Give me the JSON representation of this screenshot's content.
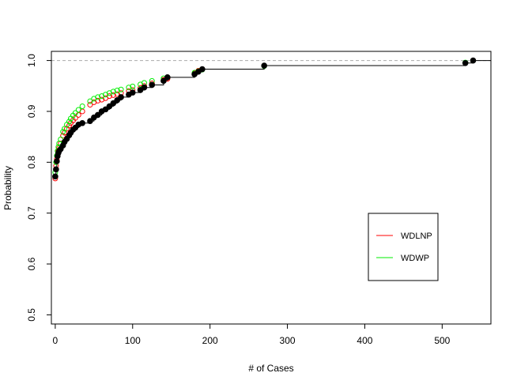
{
  "chart_data": {
    "type": "scatter",
    "title": "",
    "xlabel": "# of Cases",
    "ylabel": "Probability",
    "xlim": [
      -5,
      563
    ],
    "ylim": [
      0.482,
      1.018
    ],
    "xticks": [
      0,
      100,
      200,
      300,
      400,
      500
    ],
    "yticks": [
      0.5,
      0.6,
      0.7,
      0.8,
      0.9,
      1.0
    ],
    "ytick_labels": [
      "0.5",
      "0.6",
      "0.7",
      "0.8",
      "0.9",
      "1.0"
    ],
    "reference_line": {
      "y": 1.0,
      "style": "dashed",
      "color": "#aaaaaa"
    },
    "legend": {
      "position": "lower-right"
    },
    "series": [
      {
        "name": "",
        "kind": "step+filled-points",
        "color": "#000000",
        "x": [
          0,
          1,
          2,
          3,
          4,
          5,
          7,
          10,
          12,
          15,
          18,
          20,
          23,
          26,
          30,
          35,
          45,
          50,
          55,
          60,
          65,
          70,
          75,
          80,
          85,
          95,
          100,
          110,
          115,
          125,
          140,
          145,
          180,
          185,
          190,
          270,
          530,
          540
        ],
        "y": [
          0.772,
          0.786,
          0.802,
          0.812,
          0.818,
          0.822,
          0.826,
          0.833,
          0.84,
          0.846,
          0.853,
          0.858,
          0.864,
          0.868,
          0.874,
          0.877,
          0.881,
          0.888,
          0.893,
          0.9,
          0.904,
          0.91,
          0.916,
          0.922,
          0.928,
          0.933,
          0.937,
          0.942,
          0.947,
          0.952,
          0.96,
          0.967,
          0.973,
          0.978,
          0.983,
          0.99,
          0.995,
          1.0
        ]
      },
      {
        "name": "WDLNP",
        "kind": "open-points",
        "color": "#ff0000",
        "x": [
          0,
          1,
          2,
          3,
          4,
          5,
          7,
          10,
          12,
          15,
          18,
          20,
          23,
          26,
          30,
          35,
          45,
          50,
          55,
          60,
          65,
          70,
          75,
          80,
          85,
          95,
          100,
          110,
          115,
          125,
          140,
          145,
          180,
          185,
          190,
          270,
          530,
          540
        ],
        "y": [
          0.768,
          0.793,
          0.806,
          0.815,
          0.823,
          0.828,
          0.837,
          0.852,
          0.858,
          0.866,
          0.872,
          0.877,
          0.882,
          0.887,
          0.893,
          0.9,
          0.913,
          0.918,
          0.921,
          0.923,
          0.926,
          0.93,
          0.932,
          0.934,
          0.936,
          0.94,
          0.942,
          0.946,
          0.95,
          0.955,
          0.962,
          0.964,
          0.975,
          0.98,
          0.983,
          0.99,
          0.995,
          1.0
        ]
      },
      {
        "name": "WDWP",
        "kind": "open-points",
        "color": "#00ee00",
        "x": [
          0,
          1,
          2,
          3,
          4,
          5,
          7,
          10,
          12,
          15,
          18,
          20,
          23,
          26,
          30,
          35,
          45,
          50,
          55,
          60,
          65,
          70,
          75,
          80,
          85,
          95,
          100,
          110,
          115,
          125,
          140,
          145,
          180,
          185,
          190,
          270,
          530,
          540
        ],
        "y": [
          0.78,
          0.8,
          0.813,
          0.822,
          0.83,
          0.837,
          0.845,
          0.86,
          0.866,
          0.874,
          0.88,
          0.886,
          0.892,
          0.897,
          0.903,
          0.91,
          0.92,
          0.925,
          0.928,
          0.93,
          0.933,
          0.936,
          0.939,
          0.941,
          0.943,
          0.947,
          0.949,
          0.953,
          0.956,
          0.96,
          0.965,
          0.967,
          0.976,
          0.979,
          0.982,
          0.989,
          0.996,
          1.0
        ]
      }
    ]
  }
}
